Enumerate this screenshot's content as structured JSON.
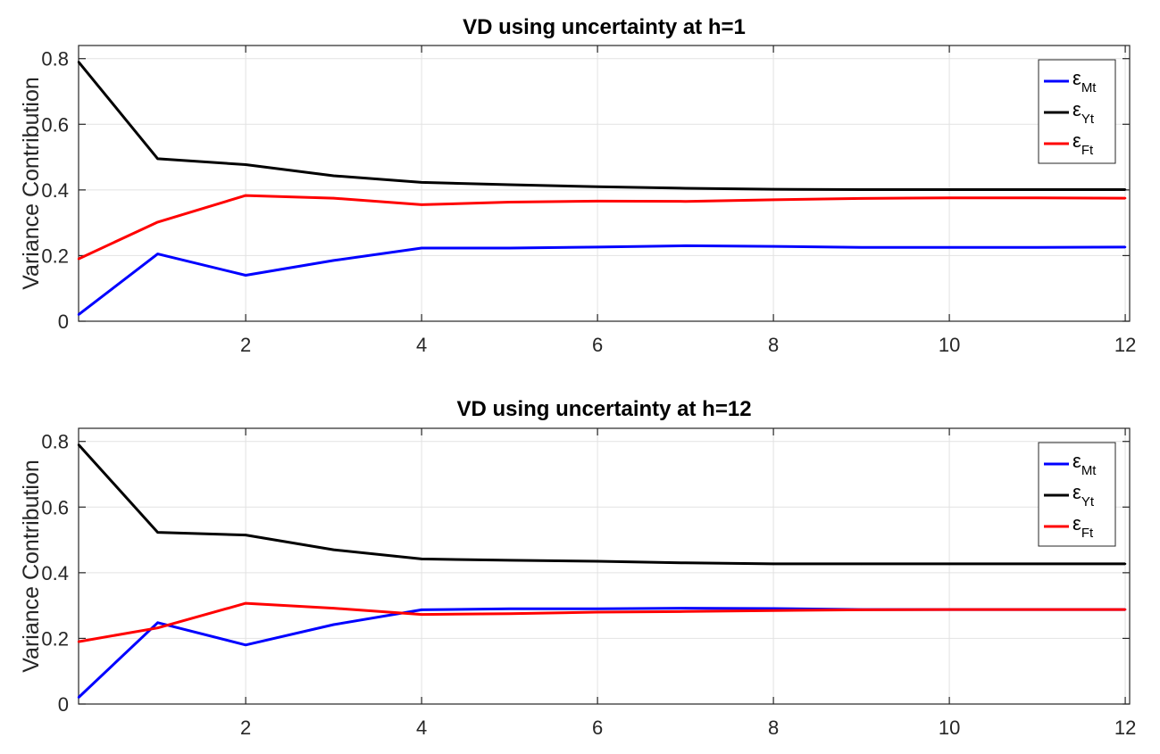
{
  "chart_data": [
    {
      "type": "line",
      "title": "VD using uncertainty at h=1",
      "xlabel": "",
      "ylabel": "Variance Contribution",
      "xlim": [
        0.1,
        12.05
      ],
      "ylim": [
        0,
        0.84
      ],
      "xticks": [
        2,
        4,
        6,
        8,
        10,
        12
      ],
      "yticks": [
        0,
        0.2,
        0.4,
        0.6,
        0.8
      ],
      "grid": true,
      "legend_placement": "top-right",
      "x": [
        0.1,
        1,
        2,
        3,
        4,
        5,
        6,
        7,
        8,
        9,
        10,
        11,
        12
      ],
      "series": [
        {
          "name": "ε",
          "name_sub": "Mt",
          "color": "#0000ff",
          "values": [
            0.02,
            0.205,
            0.14,
            0.185,
            0.223,
            0.223,
            0.226,
            0.23,
            0.228,
            0.225,
            0.225,
            0.225,
            0.226
          ]
        },
        {
          "name": "ε",
          "name_sub": "Yt",
          "color": "#000000",
          "values": [
            0.79,
            0.495,
            0.477,
            0.443,
            0.423,
            0.416,
            0.41,
            0.405,
            0.402,
            0.401,
            0.401,
            0.401,
            0.401
          ]
        },
        {
          "name": "ε",
          "name_sub": "Ft",
          "color": "#ff0000",
          "values": [
            0.19,
            0.302,
            0.383,
            0.375,
            0.355,
            0.363,
            0.366,
            0.365,
            0.37,
            0.374,
            0.376,
            0.376,
            0.375
          ]
        }
      ]
    },
    {
      "type": "line",
      "title": "VD using uncertainty at h=12",
      "xlabel": "",
      "ylabel": "Variance Contribution",
      "xlim": [
        0.1,
        12.05
      ],
      "ylim": [
        0,
        0.84
      ],
      "xticks": [
        2,
        4,
        6,
        8,
        10,
        12
      ],
      "yticks": [
        0,
        0.2,
        0.4,
        0.6,
        0.8
      ],
      "grid": true,
      "legend_placement": "top-right",
      "x": [
        0.1,
        1,
        2,
        3,
        4,
        5,
        6,
        7,
        8,
        9,
        10,
        11,
        12
      ],
      "series": [
        {
          "name": "ε",
          "name_sub": "Mt",
          "color": "#0000ff",
          "values": [
            0.02,
            0.248,
            0.18,
            0.242,
            0.287,
            0.29,
            0.29,
            0.292,
            0.291,
            0.288,
            0.288,
            0.288,
            0.288
          ]
        },
        {
          "name": "ε",
          "name_sub": "Yt",
          "color": "#000000",
          "values": [
            0.79,
            0.523,
            0.515,
            0.47,
            0.442,
            0.438,
            0.435,
            0.43,
            0.427,
            0.427,
            0.427,
            0.427,
            0.427
          ]
        },
        {
          "name": "ε",
          "name_sub": "Ft",
          "color": "#ff0000",
          "values": [
            0.19,
            0.232,
            0.307,
            0.292,
            0.273,
            0.275,
            0.28,
            0.282,
            0.285,
            0.287,
            0.288,
            0.288,
            0.288
          ]
        }
      ]
    }
  ]
}
